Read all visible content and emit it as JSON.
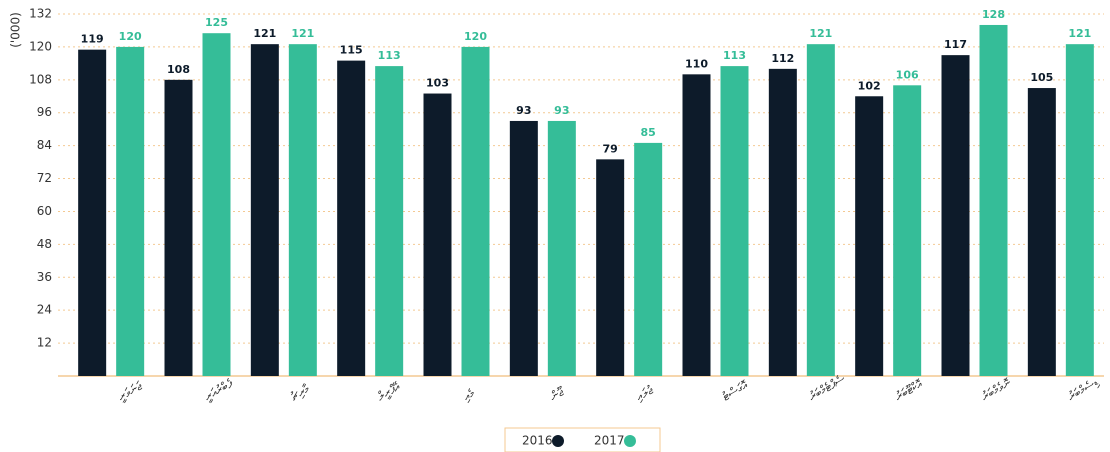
{
  "chart_data": {
    "type": "bar",
    "y_label": "('000)",
    "categories": [
      "ޖަނަވަރީ",
      "ފެބްރުއަރީ",
      "މާރިޗު",
      "އޭޕްރީލް",
      "މެއި",
      "ޖޫން",
      "ޖުލައި",
      "އޮގަސްޓު",
      "ސެޕްޓެމްބަރު",
      "އޮކްޓޫބަރު",
      "ނޮވެމްބަރު",
      "ޑިސެމްބަރު"
    ],
    "series": [
      {
        "name": "2016",
        "color": "#0d1b2a",
        "values": [
          119,
          108,
          121,
          115,
          103,
          93,
          79,
          110,
          112,
          102,
          117,
          105
        ]
      },
      {
        "name": "2017",
        "color": "#35bd98",
        "values": [
          120,
          125,
          121,
          113,
          120,
          93,
          85,
          113,
          121,
          106,
          128,
          121
        ]
      }
    ],
    "ylim": [
      0,
      132
    ],
    "yticks": [
      12,
      24,
      36,
      48,
      60,
      72,
      84,
      96,
      108,
      120,
      132
    ],
    "grid": true,
    "legend": "bottom"
  }
}
